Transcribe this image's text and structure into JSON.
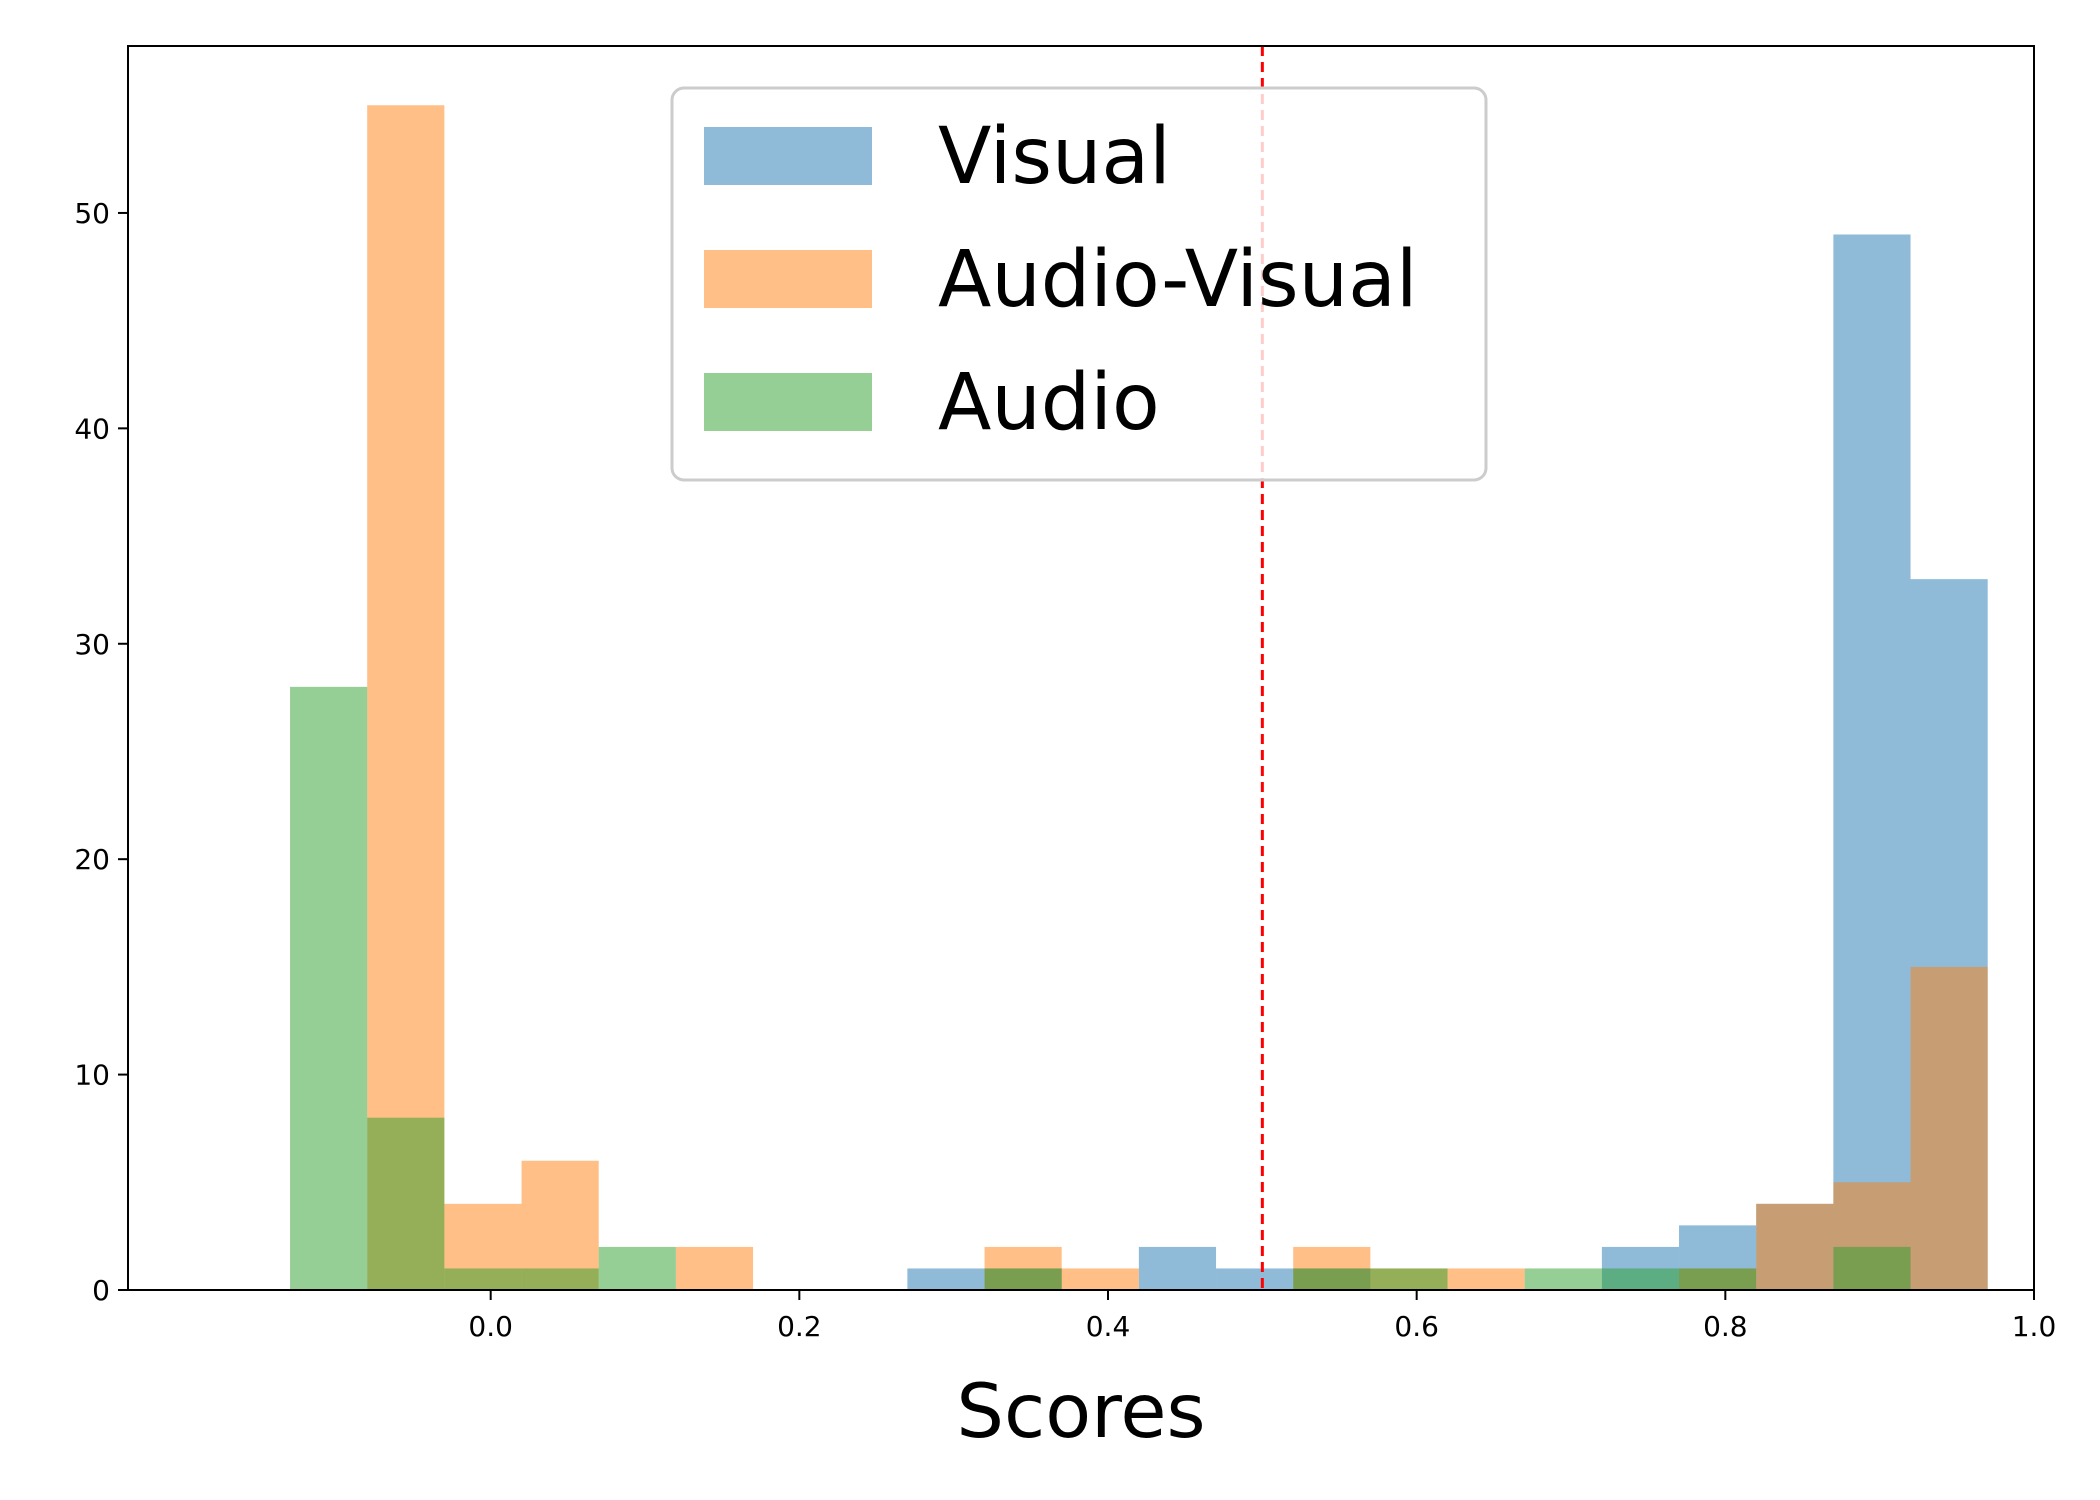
{
  "chart_data": {
    "type": "bar",
    "xlabel": "Scores",
    "ylabel": "",
    "xlim": [
      -0.235,
      1.0
    ],
    "ylim": [
      0,
      57.75
    ],
    "xticks": [
      0.0,
      0.2,
      0.4,
      0.6,
      0.8,
      1.0
    ],
    "xtick_labels": [
      "0.0",
      "0.2",
      "0.4",
      "0.6",
      "0.8",
      "1.0"
    ],
    "yticks": [
      0,
      10,
      20,
      30,
      40,
      50
    ],
    "ytick_labels": [
      "0",
      "10",
      "20",
      "30",
      "40",
      "50"
    ],
    "grid": false,
    "legend_position": "upper-center",
    "threshold": {
      "x": 0.5,
      "color": "#ff0000",
      "style": "dashed"
    },
    "bins": [
      [
        -0.13,
        -0.08
      ],
      [
        -0.08,
        -0.03
      ],
      [
        -0.03,
        0.02
      ],
      [
        0.02,
        0.07
      ],
      [
        0.07,
        0.12
      ],
      [
        0.12,
        0.17
      ],
      [
        0.17,
        0.22
      ],
      [
        0.22,
        0.27
      ],
      [
        0.27,
        0.32
      ],
      [
        0.32,
        0.37
      ],
      [
        0.37,
        0.42
      ],
      [
        0.42,
        0.47
      ],
      [
        0.47,
        0.52
      ],
      [
        0.52,
        0.57
      ],
      [
        0.57,
        0.62
      ],
      [
        0.62,
        0.67
      ],
      [
        0.67,
        0.72
      ],
      [
        0.72,
        0.77
      ],
      [
        0.77,
        0.82
      ],
      [
        0.82,
        0.87
      ],
      [
        0.87,
        0.92
      ],
      [
        0.92,
        0.97
      ]
    ],
    "series": [
      {
        "name": "Visual",
        "color": "#1f77b4",
        "values": [
          0,
          0,
          0,
          0,
          0,
          0,
          0,
          0,
          1,
          1,
          0,
          2,
          1,
          1,
          0,
          0,
          0,
          2,
          3,
          4,
          49,
          33
        ]
      },
      {
        "name": "Audio-Visual",
        "color": "#ff7f0e",
        "values": [
          0,
          55,
          4,
          6,
          0,
          2,
          0,
          0,
          0,
          2,
          1,
          0,
          0,
          2,
          1,
          1,
          0,
          0,
          1,
          4,
          5,
          15
        ]
      },
      {
        "name": "Audio",
        "color": "#2ca02c",
        "values": [
          28,
          8,
          1,
          1,
          2,
          0,
          0,
          0,
          0,
          1,
          0,
          0,
          0,
          1,
          1,
          0,
          1,
          1,
          1,
          0,
          2,
          0
        ]
      }
    ]
  }
}
